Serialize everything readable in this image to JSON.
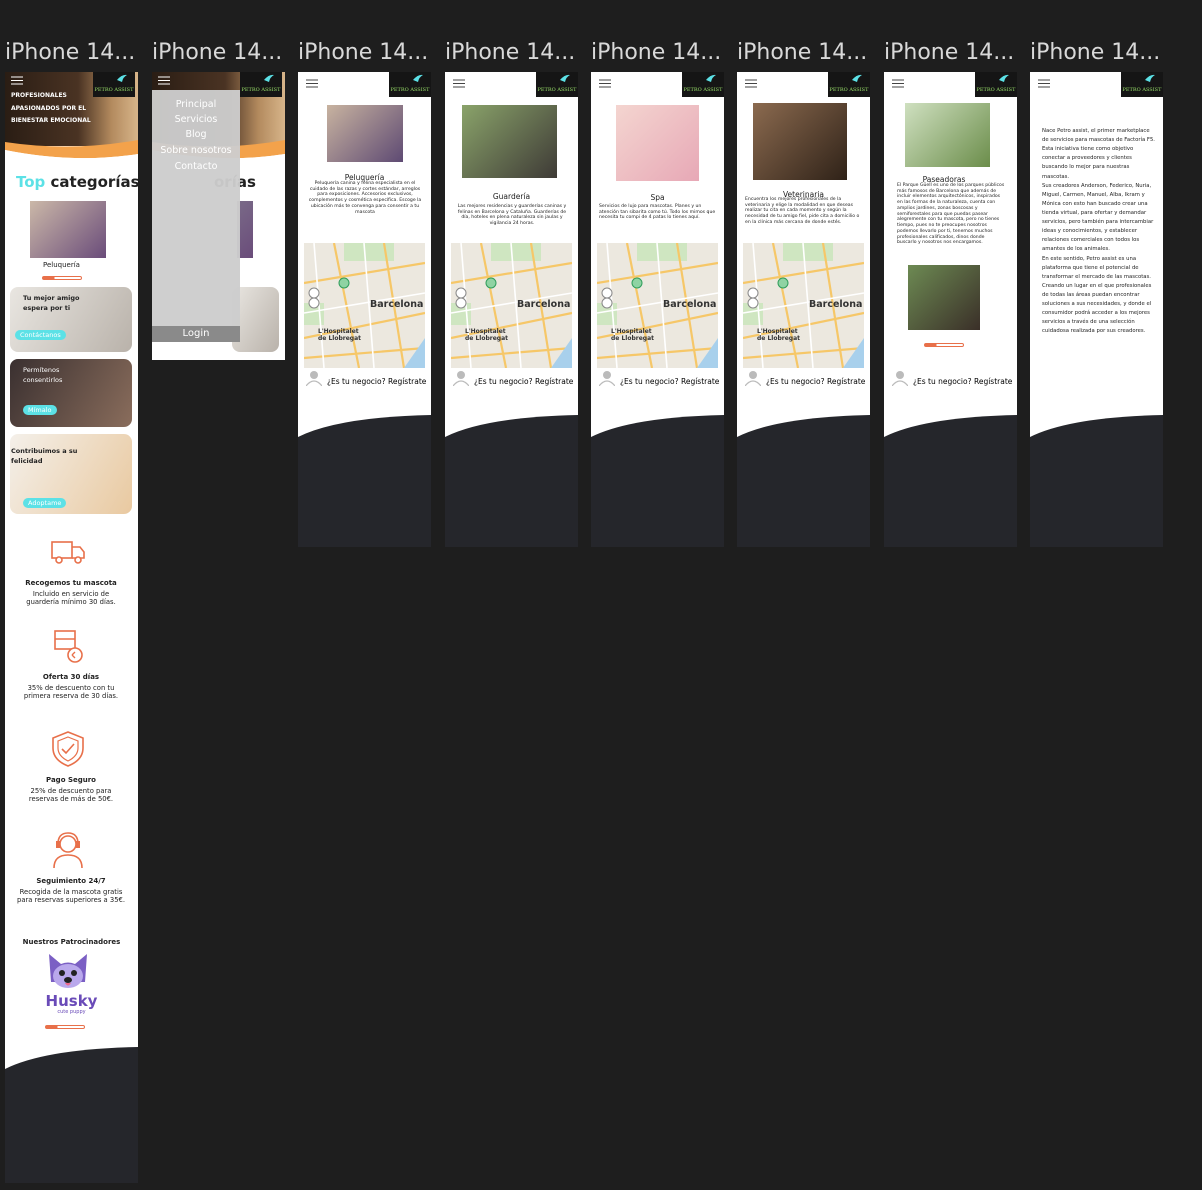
{
  "canvas": {
    "frame_labels": [
      "iPhone 14...",
      "iPhone 14...",
      "iPhone 14...",
      "iPhone 14...",
      "iPhone 14...",
      "iPhone 14...",
      "iPhone 14...",
      "iPhone 14..."
    ]
  },
  "brand": {
    "logo": "PETRO ASSIST"
  },
  "home": {
    "hero": "PROFESIONALES APASIONADOS POR EL BIENESTAR EMOCIONAL",
    "top_highlight": "Top",
    "top_rest": "categorías",
    "category": "Peluquería",
    "cards": [
      {
        "text": "Tu mejor amigo espera por ti",
        "button": "Contáctanos"
      },
      {
        "text": "Permítenos consentirlos",
        "button": "Mímalo"
      },
      {
        "text": "Contribuimos a su felicidad",
        "button": "Adoptame"
      }
    ],
    "features": [
      {
        "title": "Recogemos tu mascota",
        "text": "Incluido en servicio de guardería mínimo 30 días."
      },
      {
        "title": "Oferta 30 días",
        "text": "35% de descuento con tu primera reserva de 30 días."
      },
      {
        "title": "Pago Seguro",
        "text": "25% de descuento para reservas de más de 50€."
      },
      {
        "title": "Seguimiento 24/7",
        "text": "Recogida de la mascota gratis para reservas superiores a 35€."
      }
    ],
    "sponsors_title": "Nuestros Patrocinadores",
    "sponsor": {
      "name": "Husky",
      "tagline": "cute puppy"
    }
  },
  "menu": {
    "items": [
      "Principal",
      "Servicios",
      "Blog",
      "Sobre nosotros",
      "Contacto"
    ],
    "login": "Login",
    "behind": "orías"
  },
  "services": [
    {
      "title": "Peluquería",
      "description": "Peluquería canina y felina especialista en el cuidado de las razas y cortes estándar, arreglos para exposiciones. Accesorios exclusivos, complementos y cosmética específica. Escoge la ubicación más te convenga para consentir a tu mascota"
    },
    {
      "title": "Guardería",
      "description": "Las mejores residencias y guarderías caninas y felinas en Barcelona y Cataluña. Guarderías de día, hoteles en plena naturaleza sin jaulas y vigilancia 24 horas."
    },
    {
      "title": "Spa",
      "description": "Servicios de lujo para mascotas. Planes y un atención tan sibarita como tú. Todo los mimos que necesita tu compi de 4 patas lo tienes aquí."
    },
    {
      "title": "Veterinaria",
      "description": "Encuentra los mejores profesionales de la veterinaria y elige la modalidad en que deseas realizar tu cita en cada momento y según la necesidad de tu amigo fiel, pide cita a domicilio o en la clínica más cercana de donde estés."
    },
    {
      "title": "Paseadoras",
      "description": "El Parque Güell es uno de los parques públicos más famosos de Barcelona que además de incluir elementos arquitectónicos, inspirados en las formas de la naturaleza, cuenta con amplios jardines, zonas boscosas y semiforestales para que puedas pasear alegremente con tu mascota, pero no tienes tiempo, pues no te preocupes nosotros podemos llevarlo por ti, tenemos muchos profesionales calificados, dinos donde buscarlo y nosotros nos encargamos."
    }
  ],
  "map": {
    "city": "Barcelona",
    "district": "L'Hospitalet de Llobregat"
  },
  "register": "¿Es tu negocio? Regístrate",
  "about": {
    "paragraphs": [
      "Nace Petro assist, el primer marketplace de servicios para mascotas de Factoría F5. Esta iniciativa tiene como objetivo conectar a proveedores y clientes buscando lo mejor para nuestras mascotas.",
      "Sus creadores Anderson, Federico, Nuria, Miguel, Carmen, Manuel, Alba, Ikram y Mónica con esto han buscado crear una tienda virtual, para ofertar y demandar servicios, pero también para intercambiar ideas y conocimientos, y establecer relaciones comerciales con todos los amantes de los animales.",
      "En este sentido, Petro assist es una plataforma que tiene el potencial de transformar el mercado de las mascotas. Creando un lugar en el que profesionales de todas las áreas puedan encontrar soluciones a sus necesidades, y donde el consumidor podrá acceder a los mejores servicios a través de una selección cuidadosa realizada por sus creadores."
    ]
  }
}
